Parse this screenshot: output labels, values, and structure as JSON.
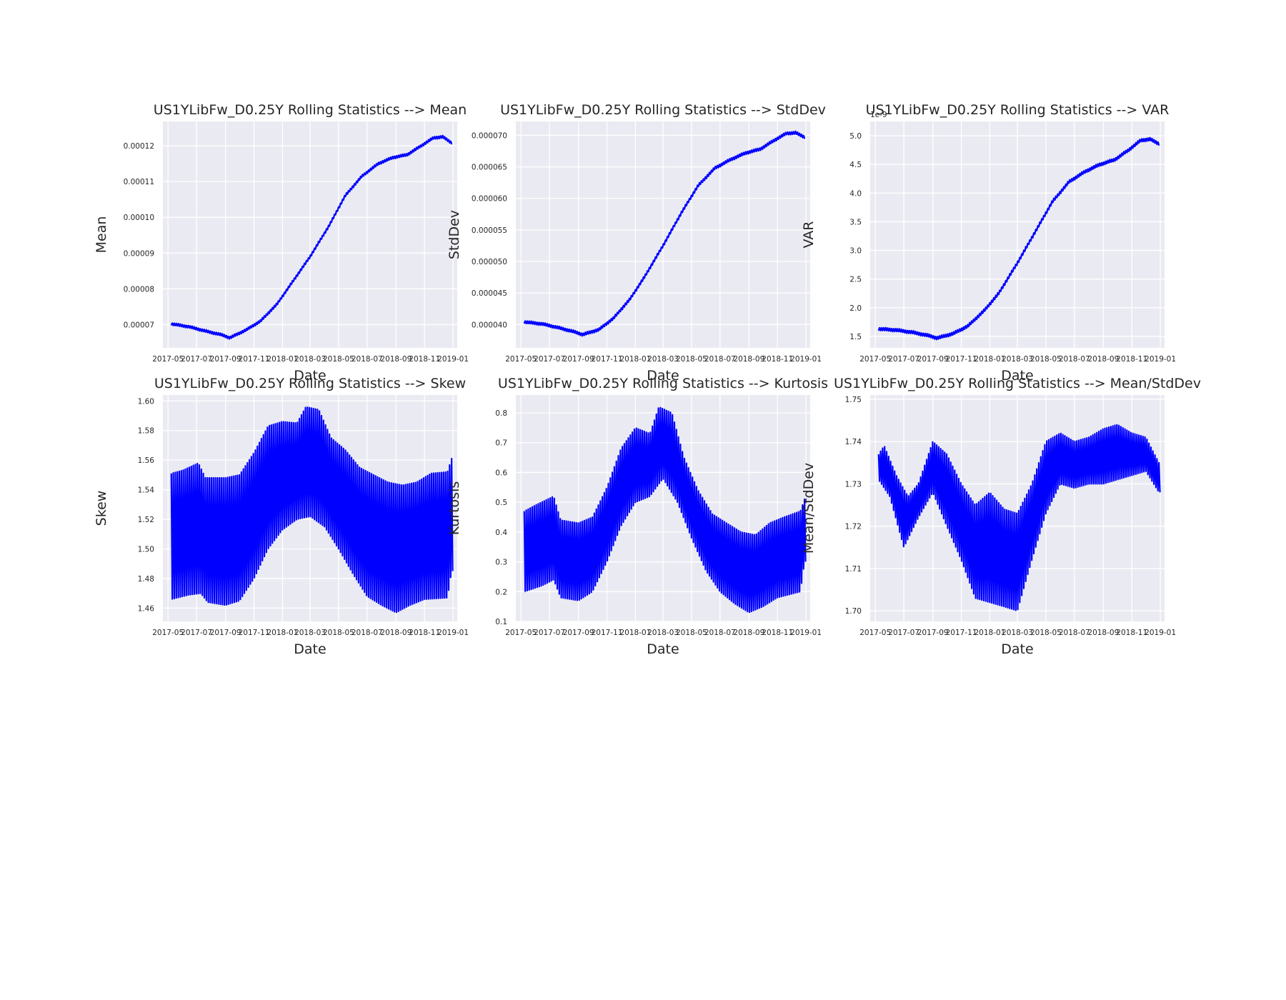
{
  "figure": {
    "background": "#ffffff",
    "plot_background": "#eaeaf2",
    "grid_color": "#ffffff",
    "line_color": "#0000ff"
  },
  "chart_data": [
    {
      "type": "line",
      "title": "US1YLibFw_D0.25Y Rolling Statistics --> Mean",
      "xlabel": "Date",
      "ylabel": "Mean",
      "x_ticks": [
        "2017-05",
        "2017-07",
        "2017-09",
        "2017-11",
        "2018-01",
        "2018-03",
        "2018-05",
        "2018-07",
        "2018-09",
        "2018-11",
        "2019-01"
      ],
      "y_ticks": [
        "0.00007",
        "0.00008",
        "0.00009",
        "0.00010",
        "0.00011",
        "0.00012"
      ],
      "ylim": [
        6.35e-05,
        0.0001268
      ],
      "grid": true,
      "series": [
        {
          "color": "#0000ff",
          "oscillation": 8e-07,
          "points": [
            [
              "2017-05-08",
              7.02e-05
            ],
            [
              "2017-06-15",
              6.94e-05
            ],
            [
              "2017-07-20",
              6.82e-05
            ],
            [
              "2017-08-25",
              6.71e-05
            ],
            [
              "2017-09-10",
              6.63e-05
            ],
            [
              "2017-10-15",
              6.85e-05
            ],
            [
              "2017-11-15",
              7.1e-05
            ],
            [
              "2017-12-20",
              7.57e-05
            ],
            [
              "2018-01-20",
              8.15e-05
            ],
            [
              "2018-03-01",
              8.9e-05
            ],
            [
              "2018-04-10",
              9.75e-05
            ],
            [
              "2018-05-15",
              0.000106
            ],
            [
              "2018-06-20",
              0.0001115
            ],
            [
              "2018-07-25",
              0.000115
            ],
            [
              "2018-08-25",
              0.0001167
            ],
            [
              "2018-09-25",
              0.0001175
            ],
            [
              "2018-10-25",
              0.00012
            ],
            [
              "2018-11-20",
              0.0001222
            ],
            [
              "2018-12-10",
              0.0001225
            ],
            [
              "2018-12-29",
              0.0001208
            ]
          ]
        }
      ]
    },
    {
      "type": "line",
      "title": "US1YLibFw_D0.25Y Rolling Statistics --> StdDev",
      "xlabel": "Date",
      "ylabel": "StdDev",
      "x_ticks": [
        "2017-05",
        "2017-07",
        "2017-09",
        "2017-11",
        "2018-01",
        "2018-03",
        "2018-05",
        "2018-07",
        "2018-09",
        "2018-11",
        "2019-01"
      ],
      "y_ticks": [
        "0.000040",
        "0.000045",
        "0.000050",
        "0.000055",
        "0.000060",
        "0.000065",
        "0.000070"
      ],
      "ylim": [
        3.63e-05,
        7.22e-05
      ],
      "grid": true,
      "series": [
        {
          "color": "#0000ff",
          "oscillation": 5e-07,
          "points": [
            [
              "2017-05-08",
              4.04e-05
            ],
            [
              "2017-06-15",
              4.01e-05
            ],
            [
              "2017-07-20",
              3.95e-05
            ],
            [
              "2017-08-25",
              3.88e-05
            ],
            [
              "2017-09-10",
              3.84e-05
            ],
            [
              "2017-10-15",
              3.92e-05
            ],
            [
              "2017-11-15",
              4.1e-05
            ],
            [
              "2017-12-20",
              4.4e-05
            ],
            [
              "2018-01-20",
              4.75e-05
            ],
            [
              "2018-03-01",
              5.25e-05
            ],
            [
              "2018-04-10",
              5.78e-05
            ],
            [
              "2018-05-15",
              6.2e-05
            ],
            [
              "2018-06-20",
              6.48e-05
            ],
            [
              "2018-07-25",
              6.62e-05
            ],
            [
              "2018-08-25",
              6.72e-05
            ],
            [
              "2018-09-25",
              6.78e-05
            ],
            [
              "2018-10-25",
              6.92e-05
            ],
            [
              "2018-11-20",
              7.03e-05
            ],
            [
              "2018-12-10",
              7.04e-05
            ],
            [
              "2018-12-29",
              6.97e-05
            ]
          ]
        }
      ]
    },
    {
      "type": "line",
      "title": "US1YLibFw_D0.25Y Rolling Statistics --> VAR",
      "xlabel": "Date",
      "ylabel": "VAR",
      "x_ticks": [
        "2017-05",
        "2017-07",
        "2017-09",
        "2017-11",
        "2018-01",
        "2018-03",
        "2018-05",
        "2018-07",
        "2018-09",
        "2018-11",
        "2019-01"
      ],
      "y_ticks": [
        "1.5",
        "2.0",
        "2.5",
        "3.0",
        "3.5",
        "4.0",
        "4.5",
        "5.0"
      ],
      "offset_label": "1e-9",
      "ylim": [
        1.3,
        5.25
      ],
      "grid": true,
      "series": [
        {
          "color": "#0000ff",
          "oscillation": 0.06,
          "points": [
            [
              "2017-05-08",
              1.63
            ],
            [
              "2017-06-15",
              1.61
            ],
            [
              "2017-07-20",
              1.57
            ],
            [
              "2017-08-25",
              1.51
            ],
            [
              "2017-09-10",
              1.47
            ],
            [
              "2017-10-15",
              1.55
            ],
            [
              "2017-11-15",
              1.68
            ],
            [
              "2017-12-20",
              1.95
            ],
            [
              "2018-01-20",
              2.25
            ],
            [
              "2018-03-01",
              2.78
            ],
            [
              "2018-04-10",
              3.35
            ],
            [
              "2018-05-15",
              3.85
            ],
            [
              "2018-06-20",
              4.2
            ],
            [
              "2018-07-25",
              4.38
            ],
            [
              "2018-08-25",
              4.5
            ],
            [
              "2018-09-25",
              4.58
            ],
            [
              "2018-10-25",
              4.75
            ],
            [
              "2018-11-20",
              4.92
            ],
            [
              "2018-12-10",
              4.94
            ],
            [
              "2018-12-29",
              4.86
            ]
          ]
        }
      ]
    },
    {
      "type": "line",
      "title": "US1YLibFw_D0.25Y Rolling Statistics --> Skew",
      "xlabel": "Date",
      "ylabel": "Skew",
      "x_ticks": [
        "2017-05",
        "2017-07",
        "2017-09",
        "2017-11",
        "2018-01",
        "2018-03",
        "2018-05",
        "2018-07",
        "2018-09",
        "2018-11",
        "2019-01"
      ],
      "y_ticks": [
        "1.46",
        "1.48",
        "1.50",
        "1.52",
        "1.54",
        "1.56",
        "1.58",
        "1.60"
      ],
      "ylim": [
        1.451,
        1.604
      ],
      "grid": true,
      "series": [
        {
          "color": "#0000ff",
          "upper": [
            [
              "2017-05-08",
              1.551
            ],
            [
              "2017-06-01",
              1.553
            ],
            [
              "2017-07-05",
              1.558
            ],
            [
              "2017-07-20",
              1.548
            ],
            [
              "2017-09-01",
              1.548
            ],
            [
              "2017-10-01",
              1.55
            ],
            [
              "2017-11-01",
              1.565
            ],
            [
              "2017-12-01",
              1.583
            ],
            [
              "2018-01-01",
              1.586
            ],
            [
              "2018-02-01",
              1.585
            ],
            [
              "2018-02-20",
              1.596
            ],
            [
              "2018-03-20",
              1.594
            ],
            [
              "2018-04-15",
              1.575
            ],
            [
              "2018-05-15",
              1.567
            ],
            [
              "2018-06-15",
              1.555
            ],
            [
              "2018-07-15",
              1.55
            ],
            [
              "2018-08-15",
              1.545
            ],
            [
              "2018-09-15",
              1.543
            ],
            [
              "2018-10-15",
              1.545
            ],
            [
              "2018-11-15",
              1.551
            ],
            [
              "2018-12-20",
              1.552
            ],
            [
              "2018-12-29",
              1.561
            ]
          ],
          "lower": [
            [
              "2017-05-08",
              1.466
            ],
            [
              "2017-06-15",
              1.469
            ],
            [
              "2017-07-10",
              1.47
            ],
            [
              "2017-07-25",
              1.464
            ],
            [
              "2017-09-01",
              1.462
            ],
            [
              "2017-10-01",
              1.465
            ],
            [
              "2017-11-01",
              1.48
            ],
            [
              "2017-12-01",
              1.5
            ],
            [
              "2018-01-01",
              1.513
            ],
            [
              "2018-02-01",
              1.52
            ],
            [
              "2018-03-01",
              1.522
            ],
            [
              "2018-04-01",
              1.515
            ],
            [
              "2018-05-01",
              1.5
            ],
            [
              "2018-06-01",
              1.483
            ],
            [
              "2018-07-01",
              1.468
            ],
            [
              "2018-08-01",
              1.462
            ],
            [
              "2018-09-01",
              1.457
            ],
            [
              "2018-10-01",
              1.462
            ],
            [
              "2018-11-01",
              1.466
            ],
            [
              "2018-12-20",
              1.467
            ],
            [
              "2018-12-29",
              1.485
            ]
          ]
        }
      ]
    },
    {
      "type": "line",
      "title": "US1YLibFw_D0.25Y Rolling Statistics --> Kurtosis",
      "xlabel": "Date",
      "ylabel": "Kurtosis",
      "x_ticks": [
        "2017-05",
        "2017-07",
        "2017-09",
        "2017-11",
        "2018-01",
        "2018-03",
        "2018-05",
        "2018-07",
        "2018-09",
        "2018-11",
        "2019-01"
      ],
      "y_ticks": [
        "0.1",
        "0.2",
        "0.3",
        "0.4",
        "0.5",
        "0.6",
        "0.7",
        "0.8"
      ],
      "ylim": [
        0.1,
        0.86
      ],
      "grid": true,
      "series": [
        {
          "color": "#0000ff",
          "upper": [
            [
              "2017-05-08",
              0.47
            ],
            [
              "2017-06-01",
              0.49
            ],
            [
              "2017-07-10",
              0.52
            ],
            [
              "2017-07-25",
              0.44
            ],
            [
              "2017-09-01",
              0.43
            ],
            [
              "2017-10-01",
              0.45
            ],
            [
              "2017-11-01",
              0.55
            ],
            [
              "2017-12-01",
              0.68
            ],
            [
              "2018-01-01",
              0.75
            ],
            [
              "2018-02-01",
              0.73
            ],
            [
              "2018-02-20",
              0.82
            ],
            [
              "2018-03-20",
              0.8
            ],
            [
              "2018-04-15",
              0.65
            ],
            [
              "2018-05-15",
              0.54
            ],
            [
              "2018-06-15",
              0.46
            ],
            [
              "2018-07-15",
              0.43
            ],
            [
              "2018-08-15",
              0.4
            ],
            [
              "2018-09-15",
              0.39
            ],
            [
              "2018-10-15",
              0.43
            ],
            [
              "2018-11-15",
              0.45
            ],
            [
              "2018-12-20",
              0.47
            ],
            [
              "2018-12-29",
              0.51
            ]
          ],
          "lower": [
            [
              "2017-05-08",
              0.2
            ],
            [
              "2017-06-15",
              0.22
            ],
            [
              "2017-07-10",
              0.24
            ],
            [
              "2017-07-25",
              0.18
            ],
            [
              "2017-09-01",
              0.17
            ],
            [
              "2017-10-01",
              0.2
            ],
            [
              "2017-11-01",
              0.3
            ],
            [
              "2017-12-01",
              0.42
            ],
            [
              "2018-01-01",
              0.5
            ],
            [
              "2018-02-01",
              0.52
            ],
            [
              "2018-03-01",
              0.58
            ],
            [
              "2018-04-01",
              0.5
            ],
            [
              "2018-05-01",
              0.38
            ],
            [
              "2018-06-01",
              0.27
            ],
            [
              "2018-07-01",
              0.2
            ],
            [
              "2018-08-01",
              0.16
            ],
            [
              "2018-09-01",
              0.13
            ],
            [
              "2018-10-01",
              0.15
            ],
            [
              "2018-11-01",
              0.18
            ],
            [
              "2018-12-20",
              0.2
            ],
            [
              "2018-12-29",
              0.3
            ]
          ]
        }
      ]
    },
    {
      "type": "line",
      "title": "US1YLibFw_D0.25Y Rolling Statistics --> Mean/StdDev",
      "xlabel": "Date",
      "ylabel": "Mean/StdDev",
      "x_ticks": [
        "2017-05",
        "2017-07",
        "2017-09",
        "2017-11",
        "2018-01",
        "2018-03",
        "2018-05",
        "2018-07",
        "2018-09",
        "2018-11",
        "2019-01"
      ],
      "y_ticks": [
        "1.70",
        "1.71",
        "1.72",
        "1.73",
        "1.74",
        "1.75"
      ],
      "ylim": [
        1.6975,
        1.751
      ],
      "grid": true,
      "series": [
        {
          "color": "#0000ff",
          "upper": [
            [
              "2017-05-08",
              1.737
            ],
            [
              "2017-05-20",
              1.739
            ],
            [
              "2017-06-15",
              1.732
            ],
            [
              "2017-07-10",
              1.727
            ],
            [
              "2017-08-01",
              1.73
            ],
            [
              "2017-09-01",
              1.74
            ],
            [
              "2017-10-01",
              1.737
            ],
            [
              "2017-11-01",
              1.73
            ],
            [
              "2017-12-01",
              1.725
            ],
            [
              "2018-01-01",
              1.728
            ],
            [
              "2018-02-01",
              1.724
            ],
            [
              "2018-03-01",
              1.723
            ],
            [
              "2018-04-01",
              1.73
            ],
            [
              "2018-05-01",
              1.74
            ],
            [
              "2018-06-01",
              1.742
            ],
            [
              "2018-07-01",
              1.74
            ],
            [
              "2018-08-01",
              1.741
            ],
            [
              "2018-09-01",
              1.743
            ],
            [
              "2018-10-01",
              1.744
            ],
            [
              "2018-11-01",
              1.742
            ],
            [
              "2018-12-01",
              1.741
            ],
            [
              "2018-12-29",
              1.735
            ]
          ],
          "lower": [
            [
              "2017-05-08",
              1.731
            ],
            [
              "2017-06-01",
              1.727
            ],
            [
              "2017-07-01",
              1.715
            ],
            [
              "2017-08-01",
              1.722
            ],
            [
              "2017-09-01",
              1.728
            ],
            [
              "2017-10-01",
              1.72
            ],
            [
              "2017-11-01",
              1.712
            ],
            [
              "2017-12-01",
              1.703
            ],
            [
              "2018-01-01",
              1.702
            ],
            [
              "2018-02-01",
              1.701
            ],
            [
              "2018-03-01",
              1.7
            ],
            [
              "2018-04-01",
              1.712
            ],
            [
              "2018-05-01",
              1.723
            ],
            [
              "2018-06-01",
              1.73
            ],
            [
              "2018-07-01",
              1.729
            ],
            [
              "2018-08-01",
              1.73
            ],
            [
              "2018-09-01",
              1.73
            ],
            [
              "2018-10-01",
              1.731
            ],
            [
              "2018-11-01",
              1.732
            ],
            [
              "2018-12-01",
              1.733
            ],
            [
              "2018-12-29",
              1.728
            ]
          ]
        }
      ]
    }
  ]
}
